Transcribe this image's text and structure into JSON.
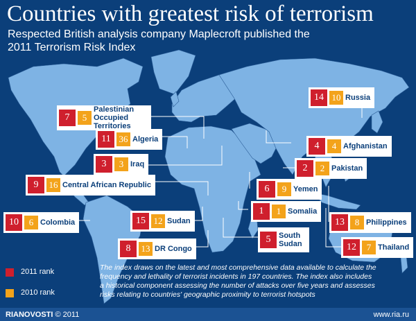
{
  "title": "Countries with greatest risk of terrorism",
  "subtitle": "Respected British analysis company Maplecroft published the 2011 Terrorism Risk Index",
  "colors": {
    "ocean": "#0b3f7a",
    "land": "#7eb3e4",
    "rank2011": "#cf1f2d",
    "rank2010": "#f3a31b"
  },
  "countries": [
    {
      "name": "Russia",
      "rank_2011": "14",
      "rank_2010": "10"
    },
    {
      "name": "Palestinian Occupied Territories",
      "rank_2011": "7",
      "rank_2010": "5"
    },
    {
      "name": "Algeria",
      "rank_2011": "11",
      "rank_2010": "36"
    },
    {
      "name": "Afghanistan",
      "rank_2011": "4",
      "rank_2010": "4"
    },
    {
      "name": "Iraq",
      "rank_2011": "3",
      "rank_2010": "3"
    },
    {
      "name": "Pakistan",
      "rank_2011": "2",
      "rank_2010": "2"
    },
    {
      "name": "Central African Republic",
      "rank_2011": "9",
      "rank_2010": "16"
    },
    {
      "name": "Yemen",
      "rank_2011": "6",
      "rank_2010": "9"
    },
    {
      "name": "Somalia",
      "rank_2011": "1",
      "rank_2010": "1"
    },
    {
      "name": "Colombia",
      "rank_2011": "10",
      "rank_2010": "6"
    },
    {
      "name": "Sudan",
      "rank_2011": "15",
      "rank_2010": "12"
    },
    {
      "name": "Philippines",
      "rank_2011": "13",
      "rank_2010": "8"
    },
    {
      "name": "South Sudan",
      "rank_2011": "5",
      "rank_2010": ""
    },
    {
      "name": "DR Congo",
      "rank_2011": "8",
      "rank_2010": "13"
    },
    {
      "name": "Thailand",
      "rank_2011": "12",
      "rank_2010": "7"
    }
  ],
  "legend": {
    "rank_2011": "2011 rank",
    "rank_2010": "2010 rank"
  },
  "note": "The index draws on the latest and most comprehensive data available to calculate the frequency and lethality of terrorist incidents in 197 countries. The index also includes a historical component assessing the number of attacks over five years and assesses risks relating to countries' geographic proximity to terrorist hotspots",
  "footer": {
    "brand": "RIANOVOSTI",
    "copyright": "© 2011",
    "url": "www.ria.ru"
  }
}
